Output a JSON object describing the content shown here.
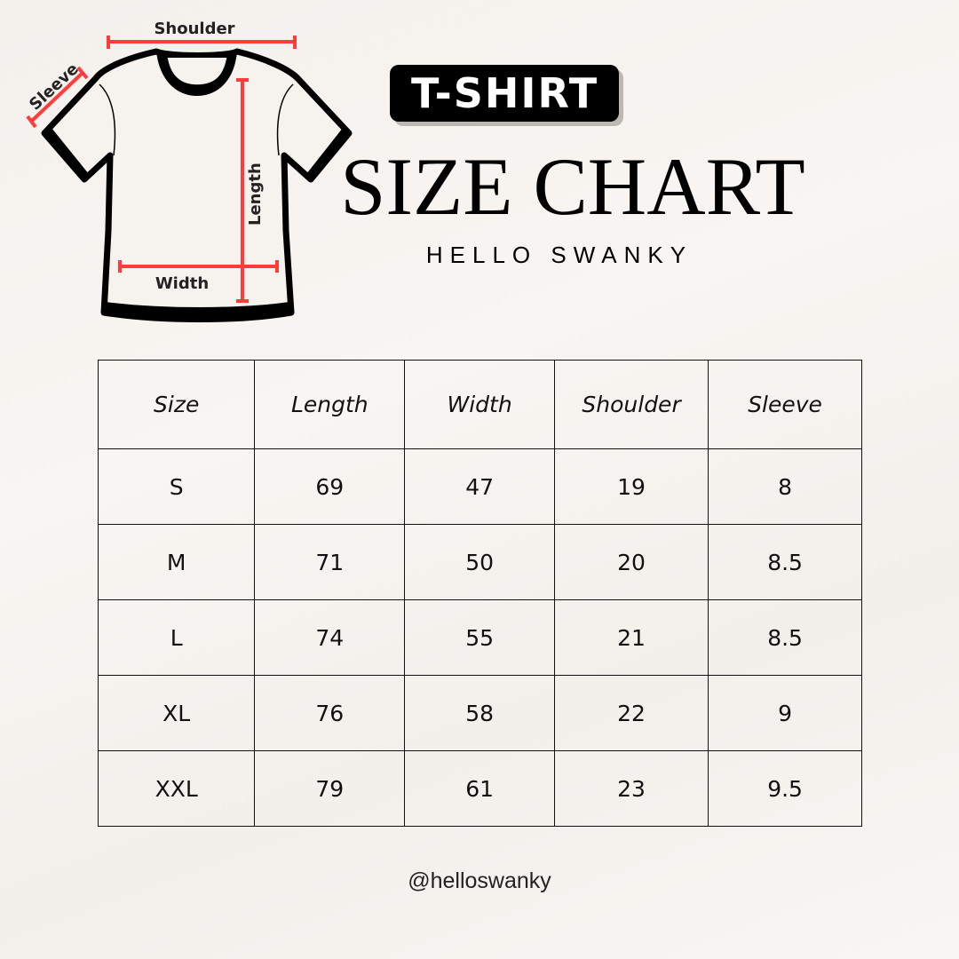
{
  "badge": "T-SHIRT",
  "title": "SIZE CHART",
  "subtitle": "HELLO SWANKY",
  "diagram": {
    "shoulder": "Shoulder",
    "sleeve": "Sleeve",
    "length": "Length",
    "width": "Width",
    "measure_color": "#ff3b3b"
  },
  "table": {
    "headers": [
      "Size",
      "Length",
      "Width",
      "Shoulder",
      "Sleeve"
    ],
    "rows": [
      [
        "S",
        "69",
        "47",
        "19",
        "8"
      ],
      [
        "M",
        "71",
        "50",
        "20",
        "8.5"
      ],
      [
        "L",
        "74",
        "55",
        "21",
        "8.5"
      ],
      [
        "XL",
        "76",
        "58",
        "22",
        "9"
      ],
      [
        "XXL",
        "79",
        "61",
        "23",
        "9.5"
      ]
    ]
  },
  "footer": "@helloswanky"
}
